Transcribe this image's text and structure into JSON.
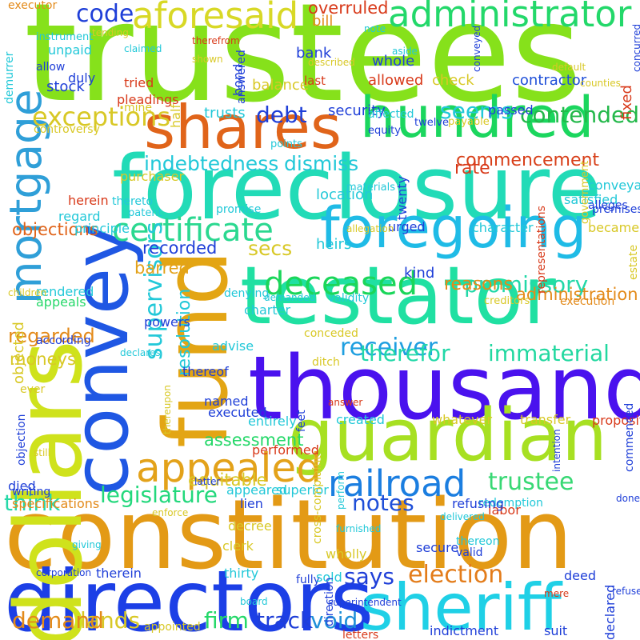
{
  "words": [
    {
      "text": "trustees",
      "color": "#86e11b"
    },
    {
      "text": "foreclosure",
      "color": "#22dbb7"
    },
    {
      "text": "thousand",
      "color": "#4a12ee"
    },
    {
      "text": "constitution",
      "color": "#e39a16"
    },
    {
      "text": "directors",
      "color": "#1c3fe6"
    },
    {
      "text": "guardian",
      "color": "#a7e022"
    },
    {
      "text": "testator",
      "color": "#20e0a2"
    },
    {
      "text": "hundred",
      "color": "#1bd65e"
    },
    {
      "text": "foregoing",
      "color": "#1fbbe6"
    },
    {
      "text": "shares",
      "color": "#e0641a"
    },
    {
      "text": "dollars",
      "color": "#cfe21c"
    },
    {
      "text": "fund",
      "color": "#e3a514"
    },
    {
      "text": "convey",
      "color": "#1f57e3"
    },
    {
      "text": "sheriff",
      "color": "#1fd0e6"
    },
    {
      "text": "mortgage",
      "color": "#2f9fd8"
    },
    {
      "text": "administrator",
      "color": "#23d86a"
    },
    {
      "text": "aforesaid",
      "color": "#d8d826"
    },
    {
      "text": "appealed",
      "color": "#e3a21a"
    },
    {
      "text": "railroad",
      "color": "#1b7ee0"
    },
    {
      "text": "certificate",
      "color": "#2bd890"
    },
    {
      "text": "deceased",
      "color": "#1bd65a"
    },
    {
      "text": "trustee",
      "color": "#38d874"
    },
    {
      "text": "election",
      "color": "#e37c1a"
    },
    {
      "text": "code",
      "color": "#1f3fd8"
    },
    {
      "text": "exceptions",
      "color": "#d8c826"
    },
    {
      "text": "supervisors",
      "color": "#22c8d8"
    },
    {
      "text": "legislature",
      "color": "#23d87c"
    },
    {
      "text": "receiver",
      "color": "#1f9fe0"
    },
    {
      "text": "promissory",
      "color": "#22d8a8"
    },
    {
      "text": "immaterial",
      "color": "#22d8a0"
    },
    {
      "text": "therefor",
      "color": "#22d8a8"
    },
    {
      "text": "lands",
      "color": "#d8c826"
    },
    {
      "text": "firm",
      "color": "#26d86a"
    },
    {
      "text": "track",
      "color": "#1f3fd8"
    },
    {
      "text": "void",
      "color": "#1f8fd8"
    },
    {
      "text": "demand",
      "color": "#e38a1a"
    },
    {
      "text": "notes",
      "color": "#1f4fd8"
    },
    {
      "text": "says",
      "color": "#1f3fd8"
    },
    {
      "text": "think",
      "color": "#26d8a8"
    },
    {
      "text": "debt",
      "color": "#1f3fd8"
    },
    {
      "text": "contended",
      "color": "#23b84a"
    },
    {
      "text": "seems",
      "color": "#22c8d8"
    },
    {
      "text": "indebtedness",
      "color": "#22c8d8"
    },
    {
      "text": "dismiss",
      "color": "#22c8d8"
    },
    {
      "text": "commencement",
      "color": "#d8401a"
    },
    {
      "text": "secs",
      "color": "#d8c826"
    },
    {
      "text": "resolution",
      "color": "#22c8d8"
    },
    {
      "text": "reasons",
      "color": "#e38a1a"
    },
    {
      "text": "regarded",
      "color": "#e38a1a"
    },
    {
      "text": "objections",
      "color": "#e0641a"
    },
    {
      "text": "recorded",
      "color": "#1f3fd8"
    },
    {
      "text": "barred",
      "color": "#e3a21a"
    },
    {
      "text": "assessment",
      "color": "#26d86a"
    },
    {
      "text": "equitable",
      "color": "#d8c826"
    },
    {
      "text": "moneys",
      "color": "#d8c826"
    },
    {
      "text": "administration",
      "color": "#e38a1a"
    },
    {
      "text": "overruled",
      "color": "#d83a1a"
    },
    {
      "text": "bill",
      "color": "#e38a1a"
    },
    {
      "text": "bank",
      "color": "#1f3fd8"
    },
    {
      "text": "whole",
      "color": "#1f3fd8"
    },
    {
      "text": "contractor",
      "color": "#1f4fd8"
    },
    {
      "text": "fixed",
      "color": "#d83a1a"
    },
    {
      "text": "allowed",
      "color": "#d83a1a"
    },
    {
      "text": "check",
      "color": "#d8c826"
    },
    {
      "text": "balance",
      "color": "#d8c826"
    },
    {
      "text": "bond",
      "color": "#1f3fd8"
    },
    {
      "text": "trusts",
      "color": "#22c8d8"
    },
    {
      "text": "security",
      "color": "#1f3fd8"
    },
    {
      "text": "passed",
      "color": "#1f3fd8"
    },
    {
      "text": "rate",
      "color": "#d83a1a"
    },
    {
      "text": "conveyance",
      "color": "#22c8d8"
    },
    {
      "text": "location",
      "color": "#22c8d8"
    },
    {
      "text": "twenty",
      "color": "#1f3fd8"
    },
    {
      "text": "urged",
      "color": "#1f3fd8"
    },
    {
      "text": "character",
      "color": "#22c8d8"
    },
    {
      "text": "became",
      "color": "#d8c826"
    },
    {
      "text": "satisfied",
      "color": "#22c8d8"
    },
    {
      "text": "heirs",
      "color": "#22c8d8"
    },
    {
      "text": "kind",
      "color": "#1f3fd8"
    },
    {
      "text": "promise",
      "color": "#22c8d8"
    },
    {
      "text": "herein",
      "color": "#d83a1a"
    },
    {
      "text": "regard",
      "color": "#22c8d8"
    },
    {
      "text": "principle",
      "color": "#22c8d8"
    },
    {
      "text": "thereto",
      "color": "#22c8d8"
    },
    {
      "text": "purchaser",
      "color": "#d8c826"
    },
    {
      "text": "unpaid",
      "color": "#22c8d8"
    },
    {
      "text": "allow",
      "color": "#1f3fd8"
    },
    {
      "text": "duly",
      "color": "#1f3fd8"
    },
    {
      "text": "stock",
      "color": "#1f3fd8"
    },
    {
      "text": "pleadings",
      "color": "#d83a1a"
    },
    {
      "text": "tried",
      "color": "#d83a1a"
    },
    {
      "text": "half",
      "color": "#d8c826"
    },
    {
      "text": "executor",
      "color": "#e38a1a"
    },
    {
      "text": "instrument",
      "color": "#22c8d8"
    },
    {
      "text": "demurrer",
      "color": "#22c8d8"
    },
    {
      "text": "rendered",
      "color": "#22c8d8"
    },
    {
      "text": "appeals",
      "color": "#26d86a"
    },
    {
      "text": "according",
      "color": "#1f3fd8"
    },
    {
      "text": "objected",
      "color": "#d8c826"
    },
    {
      "text": "ever",
      "color": "#d8c826"
    },
    {
      "text": "objection",
      "color": "#1f3fd8"
    },
    {
      "text": "died",
      "color": "#1f3fd8"
    },
    {
      "text": "writing",
      "color": "#1f3fd8"
    },
    {
      "text": "specifications",
      "color": "#e38a1a"
    },
    {
      "text": "powers",
      "color": "#1f3fd8"
    },
    {
      "text": "charter",
      "color": "#22c8d8"
    },
    {
      "text": "advise",
      "color": "#22c8d8"
    },
    {
      "text": "thereof",
      "color": "#1f3fd8"
    },
    {
      "text": "named",
      "color": "#1f3fd8"
    },
    {
      "text": "executed",
      "color": "#1f3fd8"
    },
    {
      "text": "entirely",
      "color": "#22c8d8"
    },
    {
      "text": "performed",
      "color": "#d83a1a"
    },
    {
      "text": "appeared",
      "color": "#22c8d8"
    },
    {
      "text": "superior",
      "color": "#22c8d8"
    },
    {
      "text": "lien",
      "color": "#1f3fd8"
    },
    {
      "text": "decree",
      "color": "#d8c826"
    },
    {
      "text": "clerk",
      "color": "#d8c826"
    },
    {
      "text": "thirty",
      "color": "#22c8d8"
    },
    {
      "text": "fully",
      "color": "#1f3fd8"
    },
    {
      "text": "therein",
      "color": "#1f3fd8"
    },
    {
      "text": "appointed",
      "color": "#d8c826"
    },
    {
      "text": "feet",
      "color": "#1f3fd8"
    },
    {
      "text": "cross-complaint",
      "color": "#d8c826"
    },
    {
      "text": "created",
      "color": "#22c8d8"
    },
    {
      "text": "whatever",
      "color": "#d8c826"
    },
    {
      "text": "transfer",
      "color": "#d8c826"
    },
    {
      "text": "proposition",
      "color": "#d83a1a"
    },
    {
      "text": "labor",
      "color": "#d83a1a"
    },
    {
      "text": "redemption",
      "color": "#22c8d8"
    },
    {
      "text": "refusing",
      "color": "#1f3fd8"
    },
    {
      "text": "thereon",
      "color": "#22c8d8"
    },
    {
      "text": "valid",
      "color": "#1f3fd8"
    },
    {
      "text": "wholly",
      "color": "#d8c826"
    },
    {
      "text": "secure",
      "color": "#1f3fd8"
    },
    {
      "text": "sold",
      "color": "#22c8d8"
    },
    {
      "text": "deed",
      "color": "#1f3fd8"
    },
    {
      "text": "declared",
      "color": "#1f3fd8"
    },
    {
      "text": "suit",
      "color": "#1f3fd8"
    },
    {
      "text": "indictment",
      "color": "#1f3fd8"
    },
    {
      "text": "letters",
      "color": "#d83a1a"
    },
    {
      "text": "direction",
      "color": "#1f3fd8"
    },
    {
      "text": "commenced",
      "color": "#1f3fd8"
    },
    {
      "text": "intention",
      "color": "#1f3fd8"
    },
    {
      "text": "ditch",
      "color": "#d8c826"
    },
    {
      "text": "denying",
      "color": "#22c8d8"
    },
    {
      "text": "conceded",
      "color": "#d8c826"
    },
    {
      "text": "validity",
      "color": "#22c8d8"
    },
    {
      "text": "demanded",
      "color": "#22c8d8"
    },
    {
      "text": "execution",
      "color": "#e38a1a"
    },
    {
      "text": "creditors",
      "color": "#d8c826"
    },
    {
      "text": "representations",
      "color": "#d83a1a"
    },
    {
      "text": "estate",
      "color": "#d8c826"
    },
    {
      "text": "government",
      "color": "#d8c826"
    },
    {
      "text": "premises",
      "color": "#1f3fd8"
    },
    {
      "text": "alleges",
      "color": "#1f3fd8"
    },
    {
      "text": "allegation",
      "color": "#d8c826"
    },
    {
      "text": "materials",
      "color": "#22c8d8"
    },
    {
      "text": "patent",
      "color": "#22c8d8"
    },
    {
      "text": "twelve",
      "color": "#1f3fd8"
    },
    {
      "text": "payable",
      "color": "#d8c826"
    },
    {
      "text": "equity",
      "color": "#1f3fd8"
    },
    {
      "text": "points",
      "color": "#22c8d8"
    },
    {
      "text": "affected",
      "color": "#22c8d8"
    },
    {
      "text": "controversy",
      "color": "#d8c826"
    },
    {
      "text": "mine",
      "color": "#d8c826"
    },
    {
      "text": "last",
      "color": "#d83a1a"
    },
    {
      "text": "answered",
      "color": "#1f3fd8"
    },
    {
      "text": "described",
      "color": "#d8c826"
    },
    {
      "text": "therefrom",
      "color": "#d83a1a"
    },
    {
      "text": "shown",
      "color": "#d8c826"
    },
    {
      "text": "claimed",
      "color": "#22c8d8"
    },
    {
      "text": "tending",
      "color": "#d8c826"
    },
    {
      "text": "note",
      "color": "#22c8d8"
    },
    {
      "text": "aside",
      "color": "#22c8d8"
    },
    {
      "text": "conveyed",
      "color": "#1f3fd8"
    },
    {
      "text": "concurred",
      "color": "#1f3fd8"
    },
    {
      "text": "default",
      "color": "#d8c826"
    },
    {
      "text": "counties",
      "color": "#d8c826"
    },
    {
      "text": "children",
      "color": "#d8c826"
    },
    {
      "text": "declares",
      "color": "#22c8d8"
    },
    {
      "text": "answer",
      "color": "#d83a1a"
    },
    {
      "text": "latter",
      "color": "#1f3fd8"
    },
    {
      "text": "thereupon",
      "color": "#d8c826"
    },
    {
      "text": "still",
      "color": "#d8c826"
    },
    {
      "text": "giving",
      "color": "#22c8d8"
    },
    {
      "text": "enforce",
      "color": "#d8c826"
    },
    {
      "text": "perform",
      "color": "#22c8d8"
    },
    {
      "text": "furnished",
      "color": "#22c8d8"
    },
    {
      "text": "board",
      "color": "#22c8d8"
    },
    {
      "text": "corporation",
      "color": "#1f3fd8"
    },
    {
      "text": "superintendent",
      "color": "#1f3fd8"
    },
    {
      "text": "mere",
      "color": "#d83a1a"
    },
    {
      "text": "delivered",
      "color": "#22c8d8"
    },
    {
      "text": "done",
      "color": "#1f3fd8"
    },
    {
      "text": "refused",
      "color": "#1f3fd8"
    },
    {
      "text": "land",
      "color": "#22c8d8"
    },
    {
      "text": "appointment",
      "color": "#d83a1a"
    },
    {
      "text": "water",
      "color": "#22c8d8"
    },
    {
      "text": "copy",
      "color": "#d83a1a"
    }
  ]
}
